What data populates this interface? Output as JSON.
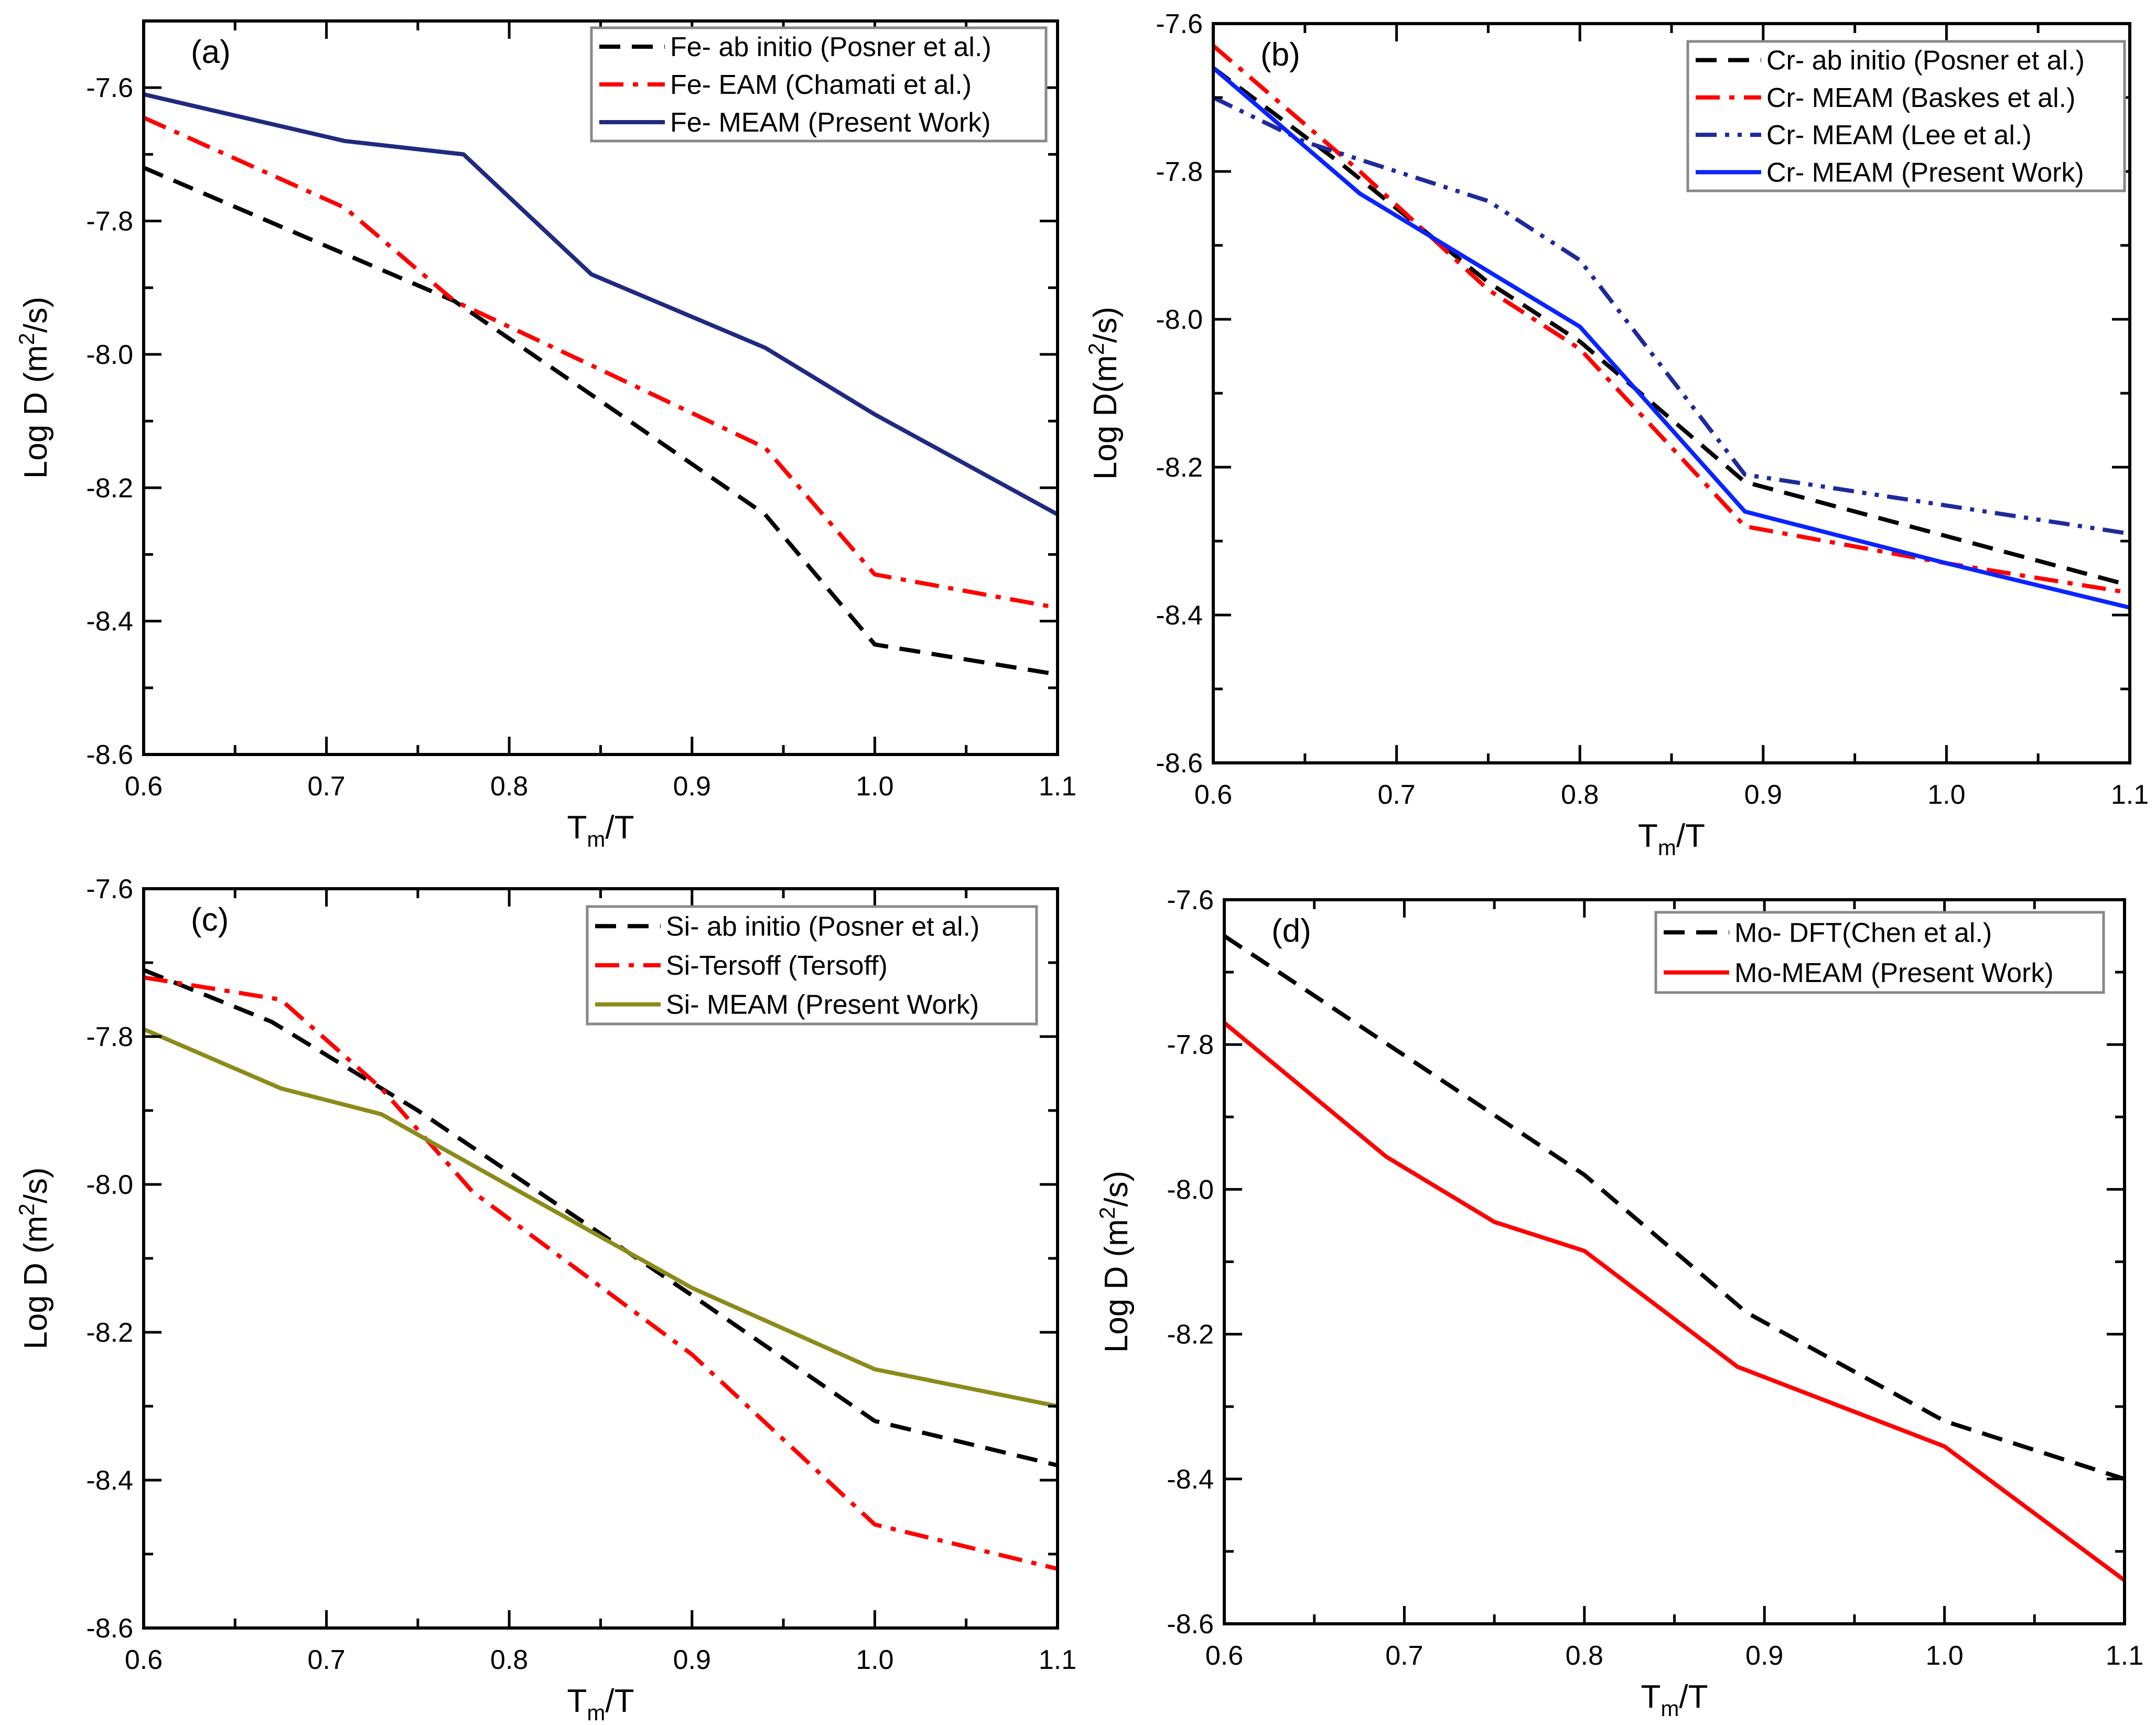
{
  "chart_data": [
    {
      "type": "line",
      "panel_label": "(a)",
      "xlabel": {
        "base": "T",
        "sub": "m",
        "rest": "/T"
      },
      "ylabel": {
        "pre": "Log D (m",
        "sup": "2",
        "post": "/s)"
      },
      "xlim": [
        0.6,
        1.1
      ],
      "ylim": [
        -8.6,
        -7.5
      ],
      "xticks": [
        "0.6",
        "0.7",
        "0.8",
        "0.9",
        "1.0",
        "1.1"
      ],
      "yticks": [
        "-8.6",
        "-8.4",
        "-8.2",
        "-8.0",
        "-7.8",
        "-7.6"
      ],
      "legend": "top-right",
      "series": [
        {
          "name": "Fe-  ab initio (Posner et al.)",
          "color": "#000000",
          "dash": "dash",
          "x": [
            0.6,
            0.77,
            0.85,
            0.94,
            1.0,
            1.1
          ],
          "y": [
            -7.72,
            -7.92,
            -8.07,
            -8.24,
            -8.435,
            -8.48
          ]
        },
        {
          "name": "Fe- EAM (Chamati et al.)",
          "color": "#ff0000",
          "dash": "dashdot",
          "x": [
            0.6,
            0.71,
            0.77,
            0.84,
            0.94,
            1.0,
            1.1
          ],
          "y": [
            -7.645,
            -7.78,
            -7.92,
            -8.01,
            -8.14,
            -8.33,
            -8.38
          ]
        },
        {
          "name": "Fe- MEAM (Present Work)",
          "color": "#1f2a80",
          "dash": "solid",
          "x": [
            0.6,
            0.71,
            0.775,
            0.845,
            0.94,
            1.0,
            1.1
          ],
          "y": [
            -7.61,
            -7.68,
            -7.7,
            -7.88,
            -7.99,
            -8.09,
            -8.24
          ]
        }
      ]
    },
    {
      "type": "line",
      "panel_label": "(b)",
      "xlabel": {
        "base": "T",
        "sub": "m",
        "rest": "/T"
      },
      "ylabel": {
        "pre": "Log D(m",
        "sup": "2",
        "post": "/s)"
      },
      "xlim": [
        0.6,
        1.1
      ],
      "ylim": [
        -8.6,
        -7.6
      ],
      "xticks": [
        "0.6",
        "0.7",
        "0.8",
        "0.9",
        "1.0",
        "1.1"
      ],
      "yticks": [
        "-8.6",
        "-8.4",
        "-8.2",
        "-8.0",
        "-7.8",
        "-7.6"
      ],
      "legend": "top-right",
      "series": [
        {
          "name": "Cr- ab initio (Posner et al.)",
          "color": "#000000",
          "dash": "dash",
          "x": [
            0.6,
            0.67,
            0.75,
            0.8,
            0.89,
            1.1
          ],
          "y": [
            -7.66,
            -7.79,
            -7.95,
            -8.03,
            -8.22,
            -8.36
          ]
        },
        {
          "name": "Cr- MEAM (Baskes et al.)",
          "color": "#ff0000",
          "dash": "dashdot",
          "x": [
            0.6,
            0.68,
            0.75,
            0.8,
            0.89,
            1.0,
            1.1
          ],
          "y": [
            -7.63,
            -7.8,
            -7.96,
            -8.04,
            -8.28,
            -8.33,
            -8.37
          ]
        },
        {
          "name": "Cr- MEAM (Lee et al.)",
          "color": "#1f2a9a",
          "dash": "dashdotdot",
          "x": [
            0.6,
            0.65,
            0.7,
            0.75,
            0.8,
            0.89,
            1.1
          ],
          "y": [
            -7.7,
            -7.76,
            -7.8,
            -7.84,
            -7.92,
            -8.21,
            -8.29
          ]
        },
        {
          "name": "Cr- MEAM (Present Work)",
          "color": "#0a24ff",
          "dash": "solid",
          "x": [
            0.6,
            0.68,
            0.74,
            0.8,
            0.89,
            1.0,
            1.1
          ],
          "y": [
            -7.66,
            -7.83,
            -7.92,
            -8.01,
            -8.26,
            -8.33,
            -8.39
          ]
        }
      ]
    },
    {
      "type": "line",
      "panel_label": "(c)",
      "xlabel": {
        "base": "T",
        "sub": "m",
        "rest": "/T"
      },
      "ylabel": {
        "pre": "Log D (m",
        "sup": "2",
        "post": "/s)"
      },
      "xlim": [
        0.6,
        1.1
      ],
      "ylim": [
        -8.6,
        -7.6
      ],
      "xticks": [
        "0.6",
        "0.7",
        "0.8",
        "0.9",
        "1.0",
        "1.1"
      ],
      "yticks": [
        "-8.6",
        "-8.4",
        "-8.2",
        "-8.0",
        "-7.8",
        "-7.6"
      ],
      "legend": "top-right",
      "series": [
        {
          "name": "Si- ab initio (Posner et al.)",
          "color": "#000000",
          "dash": "dash",
          "x": [
            0.6,
            0.67,
            0.75,
            0.9,
            1.0,
            1.1
          ],
          "y": [
            -7.71,
            -7.78,
            -7.9,
            -8.15,
            -8.32,
            -8.38
          ]
        },
        {
          "name": "Si-Tersoff (Tersoff)",
          "color": "#ff0000",
          "dash": "dashdot",
          "x": [
            0.6,
            0.675,
            0.73,
            0.78,
            0.9,
            1.0,
            1.1
          ],
          "y": [
            -7.72,
            -7.75,
            -7.87,
            -8.01,
            -8.23,
            -8.46,
            -8.52
          ]
        },
        {
          "name": "Si- MEAM (Present Work)",
          "color": "#8b8b1a",
          "dash": "solid",
          "x": [
            0.6,
            0.675,
            0.73,
            0.9,
            1.0,
            1.1
          ],
          "y": [
            -7.79,
            -7.87,
            -7.905,
            -8.14,
            -8.25,
            -8.3
          ]
        }
      ]
    },
    {
      "type": "line",
      "panel_label": "(d)",
      "xlabel": {
        "base": "T",
        "sub": "m",
        "rest": "/T"
      },
      "ylabel": {
        "pre": "Log D (m",
        "sup": "2",
        "post": "/s)"
      },
      "xlim": [
        0.6,
        1.1
      ],
      "ylim": [
        -8.6,
        -7.6
      ],
      "xticks": [
        "0.6",
        "0.7",
        "0.8",
        "0.9",
        "1.0",
        "1.1"
      ],
      "yticks": [
        "-8.6",
        "-8.4",
        "-8.2",
        "-8.0",
        "-7.8",
        "-7.6"
      ],
      "legend": "top-right",
      "series": [
        {
          "name": "Mo- DFT(Chen et al.)",
          "color": "#000000",
          "dash": "dash",
          "x": [
            0.6,
            0.8,
            0.89,
            1.0,
            1.1
          ],
          "y": [
            -7.65,
            -7.98,
            -8.17,
            -8.32,
            -8.4
          ]
        },
        {
          "name": "Mo-MEAM (Present Work)",
          "color": "#ff0000",
          "dash": "solid",
          "x": [
            0.6,
            0.69,
            0.75,
            0.8,
            0.885,
            1.0,
            1.1
          ],
          "y": [
            -7.77,
            -7.955,
            -8.045,
            -8.085,
            -8.245,
            -8.355,
            -8.54
          ]
        }
      ]
    }
  ]
}
